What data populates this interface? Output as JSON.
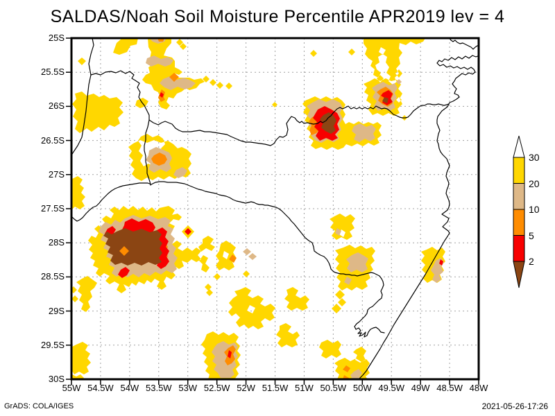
{
  "title": "SALDAS/Noah Soil Moisture Percentile APR2019 lev = 4",
  "footer": {
    "left": "GrADS: COLA/IGES",
    "right": "2021-05-26-17:26"
  },
  "axes": {
    "lat_ticks": [
      "25S",
      "25.5S",
      "26S",
      "26.5S",
      "27S",
      "27.5S",
      "28S",
      "28.5S",
      "29S",
      "29.5S",
      "30S"
    ],
    "lon_ticks": [
      "55W",
      "54.5W",
      "54W",
      "53.5W",
      "53W",
      "52.5W",
      "52W",
      "51.5W",
      "51W",
      "50.5W",
      "50W",
      "49.5W",
      "49W",
      "48.5W",
      "48W"
    ]
  },
  "colorbar": {
    "labels": [
      "30",
      "20",
      "10",
      "5",
      "2"
    ],
    "colors": {
      "level30": "#FFD700",
      "level20": "#DEB887",
      "level10": "#FF8C00",
      "level5": "#F80000",
      "level2": "#8B4513",
      "arrow_top": "#FFFFFF"
    }
  },
  "chart_data": {
    "type": "filled-contour-map",
    "title": "SALDAS/Noah Soil Moisture Percentile APR2019 lev = 4",
    "model": "SALDAS/Noah",
    "variable": "Soil Moisture Percentile",
    "time": "APR2019",
    "level": 4,
    "lon_range": [
      "55W",
      "48W"
    ],
    "lat_range": [
      "25S",
      "30S"
    ],
    "graticule": "0.5 degree dotted grid",
    "contour_levels": [
      2,
      5,
      10,
      20,
      30
    ],
    "level_colors": {
      "below_2": "#8B4513",
      "2_to_5": "#F80000",
      "5_to_10": "#FF8C00",
      "10_to_20": "#DEB887",
      "20_to_30": "#FFD700",
      "above_30": "white"
    },
    "features": [
      {
        "region": "large interior drought patch",
        "center": "53.9W 28.0S",
        "min_percentile": "<2"
      },
      {
        "region": "north-central drought patch",
        "center": "50.6W 26.2S",
        "min_percentile": "<2"
      },
      {
        "region": "northeastern drought patch",
        "center": "49.6W 25.9S",
        "min_percentile": "<2"
      },
      {
        "region": "west-central patch",
        "center": "53.5W 26.8S",
        "min_percentile": "<10"
      },
      {
        "region": "top-center cluster",
        "center": "53.4W 25.5S",
        "min_percentile": "<10"
      },
      {
        "region": "south-central patch",
        "center": "52.4W 29.6S",
        "min_percentile": "<5"
      },
      {
        "region": "eastern coastal patch",
        "center": "48.7W 28.4S",
        "min_percentile": "<5"
      },
      {
        "region": "scattered areas below 30th percentile",
        "center": "throughout domain",
        "min_percentile": "<30"
      }
    ],
    "legend_position": "right vertical colorbar with end arrows"
  }
}
